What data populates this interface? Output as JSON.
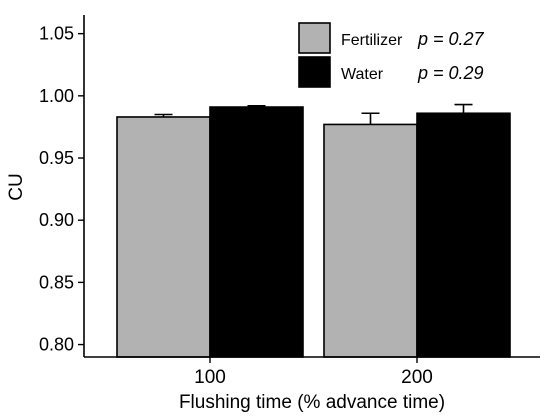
{
  "chart_data": {
    "type": "bar",
    "categories": [
      "100",
      "200"
    ],
    "series": [
      {
        "name": "Fertilizer",
        "color": "#b2b2b2",
        "values": [
          0.983,
          0.977
        ],
        "errors": [
          0.002,
          0.009
        ],
        "p_label": "p = 0.27"
      },
      {
        "name": "Water",
        "color": "#000000",
        "values": [
          0.991,
          0.986
        ],
        "errors": [
          0.001,
          0.007
        ],
        "p_label": "p = 0.29"
      }
    ],
    "xlabel": "Flushing time (% advance time)",
    "ylabel": "CU",
    "ylim": [
      0.79,
      1.065
    ],
    "yticks": [
      "0.80",
      "0.85",
      "0.90",
      "0.95",
      "1.00",
      "1.05"
    ],
    "grid": false,
    "legend": "top-right"
  }
}
